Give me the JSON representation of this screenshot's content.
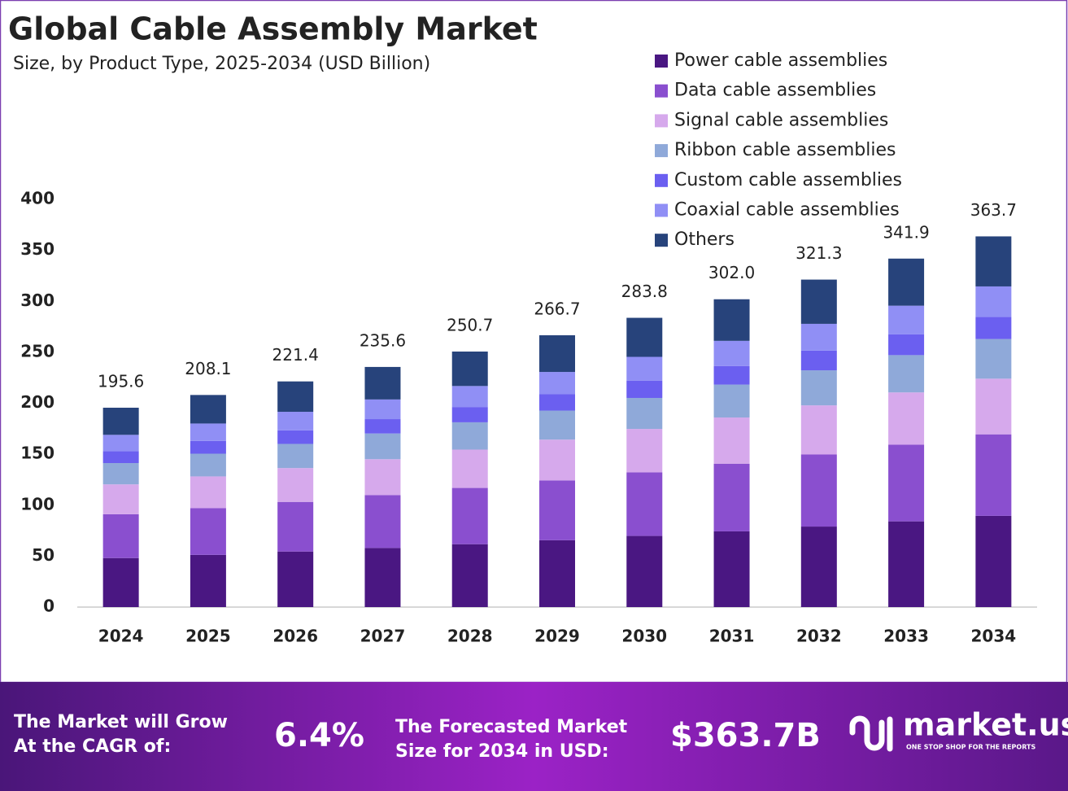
{
  "chart_data": {
    "type": "stacked-bar",
    "title": "Global Cable Assembly Market",
    "subtitle": "Size, by Product Type, 2025-2034 (USD Billion)",
    "categories": [
      "2024",
      "2025",
      "2026",
      "2027",
      "2028",
      "2029",
      "2030",
      "2031",
      "2032",
      "2033",
      "2034"
    ],
    "series": [
      {
        "name": "Power cable assemblies",
        "color": "#4a1782",
        "values": [
          48.1,
          51.2,
          54.5,
          58.0,
          61.7,
          65.6,
          69.8,
          74.3,
          79.0,
          84.1,
          89.5
        ]
      },
      {
        "name": "Data cable assemblies",
        "color": "#8a4fcf",
        "values": [
          43.0,
          45.8,
          48.7,
          51.8,
          55.2,
          58.7,
          62.4,
          66.4,
          70.7,
          75.2,
          80.0
        ]
      },
      {
        "name": "Signal cable assemblies",
        "color": "#d6a9ec",
        "values": [
          29.3,
          31.2,
          33.2,
          35.3,
          37.6,
          40.0,
          42.6,
          45.3,
          48.2,
          51.3,
          54.6
        ]
      },
      {
        "name": "Ribbon cable assemblies",
        "color": "#8fa9d9",
        "values": [
          20.9,
          22.3,
          23.7,
          25.2,
          26.8,
          28.5,
          30.4,
          32.3,
          34.4,
          36.6,
          38.9
        ]
      },
      {
        "name": "Custom cable assemblies",
        "color": "#6b5ff0",
        "values": [
          11.7,
          12.5,
          13.3,
          14.1,
          15.0,
          16.0,
          17.0,
          18.1,
          19.3,
          20.5,
          21.8
        ]
      },
      {
        "name": "Coaxial cable assemblies",
        "color": "#908ff5",
        "values": [
          16.0,
          17.1,
          18.2,
          19.3,
          20.6,
          21.9,
          23.3,
          24.8,
          26.3,
          28.0,
          29.8
        ]
      },
      {
        "name": "Others",
        "color": "#27437b",
        "values": [
          26.6,
          28.0,
          29.8,
          31.9,
          33.8,
          36.0,
          38.3,
          40.8,
          43.4,
          46.2,
          49.1
        ]
      }
    ],
    "totals": [
      195.6,
      208.1,
      221.4,
      235.6,
      250.7,
      266.7,
      283.8,
      302.0,
      321.3,
      341.9,
      363.7
    ],
    "total_labels": [
      "195.6",
      "208.1",
      "221.4",
      "235.6",
      "250.7",
      "266.7",
      "283.8",
      "302.0",
      "321.3",
      "341.9",
      "363.7"
    ],
    "ylim": [
      0,
      400
    ],
    "yticks": [
      0,
      50,
      100,
      150,
      200,
      250,
      300,
      350,
      400
    ],
    "grid": false
  },
  "footer": {
    "cagr_text": [
      "The Market will Grow",
      "At the CAGR of:"
    ],
    "cagr_value": "6.4%",
    "forecast_text": [
      "The Forecasted Market",
      "Size for 2034 in USD:"
    ],
    "forecast_value": "$363.7B",
    "brand": "market.us",
    "tagline": "ONE STOP SHOP FOR THE REPORTS"
  }
}
